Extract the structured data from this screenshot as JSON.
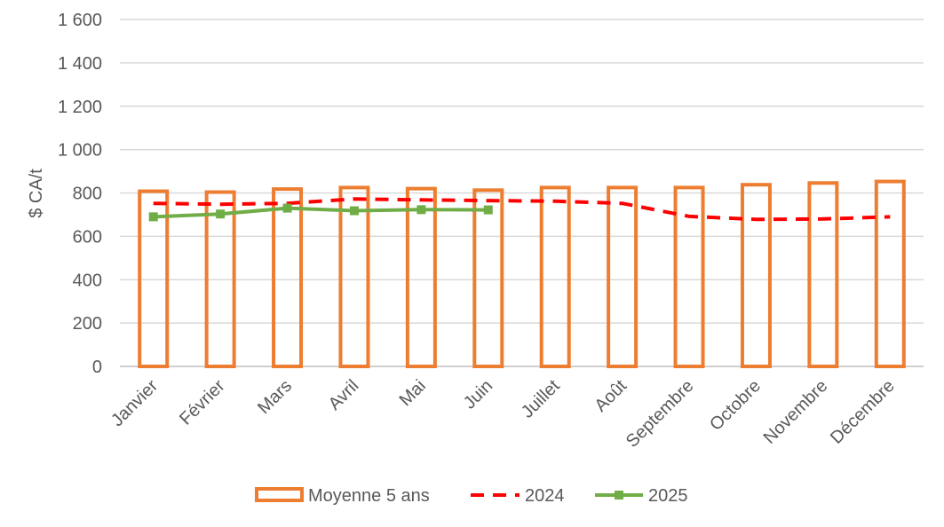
{
  "chart_data": {
    "type": "bar",
    "ylabel": "$ CA/t",
    "ylim": [
      0,
      1600
    ],
    "yticks": [
      0,
      200,
      400,
      600,
      800,
      1000,
      1200,
      1400,
      1600
    ],
    "ytick_labels": [
      "0",
      "200",
      "400",
      "600",
      "800",
      "1 000",
      "1 200",
      "1 400",
      "1 600"
    ],
    "categories": [
      "Janvier",
      "Février",
      "Mars",
      "Avril",
      "Mai",
      "Juin",
      "Juillet",
      "Août",
      "Septembre",
      "Octobre",
      "Novembre",
      "Décembre"
    ],
    "grid": true,
    "legend_position": "bottom",
    "series": [
      {
        "name": "Moyenne 5 ans",
        "type": "bar",
        "style": "outline",
        "color": "#ED7D31",
        "values": [
          808,
          804,
          818,
          825,
          820,
          813,
          825,
          825,
          825,
          838,
          846,
          853
        ]
      },
      {
        "name": "2024",
        "type": "line",
        "style": "dashed",
        "color": "#FF0000",
        "values": [
          752,
          748,
          752,
          772,
          768,
          765,
          762,
          752,
          692,
          678,
          680,
          690
        ]
      },
      {
        "name": "2025",
        "type": "line",
        "style": "solid-markers",
        "color": "#70AD47",
        "values": [
          690,
          703,
          730,
          718,
          723,
          722,
          null,
          null,
          null,
          null,
          null,
          null
        ]
      }
    ]
  }
}
